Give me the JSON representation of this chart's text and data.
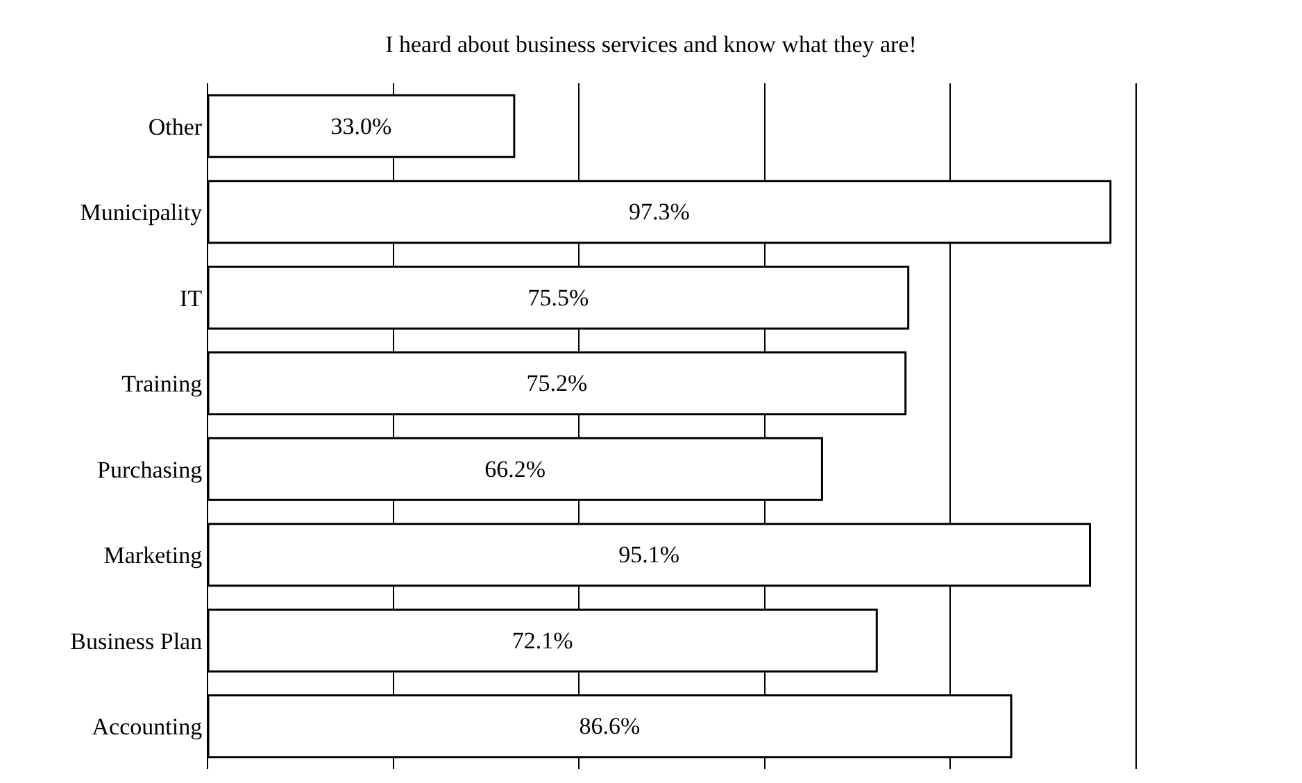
{
  "chart_data": {
    "type": "bar",
    "orientation": "horizontal",
    "title": "I heard about business services and know what they are!",
    "categories": [
      "Other",
      "Municipality",
      "IT",
      "Training",
      "Purchasing",
      "Marketing",
      "Business Plan",
      "Accounting"
    ],
    "values": [
      33.0,
      97.3,
      75.5,
      75.2,
      66.2,
      95.1,
      72.1,
      86.6
    ],
    "value_labels": [
      "33.0%",
      "97.3%",
      "75.5%",
      "75.2%",
      "66.2%",
      "95.1%",
      "72.1%",
      "86.6%"
    ],
    "color": "#ffffff",
    "xlim": [
      0,
      100
    ],
    "xticks": [
      {
        "value": 0,
        "label": null
      },
      {
        "value": 20,
        "label": null
      },
      {
        "value": 40,
        "label": null
      },
      {
        "value": 60,
        "label": null
      },
      {
        "value": 80,
        "label": null
      },
      {
        "value": 100,
        "label": null
      }
    ],
    "grid": "x",
    "legend": false,
    "tick_labels": "y"
  }
}
